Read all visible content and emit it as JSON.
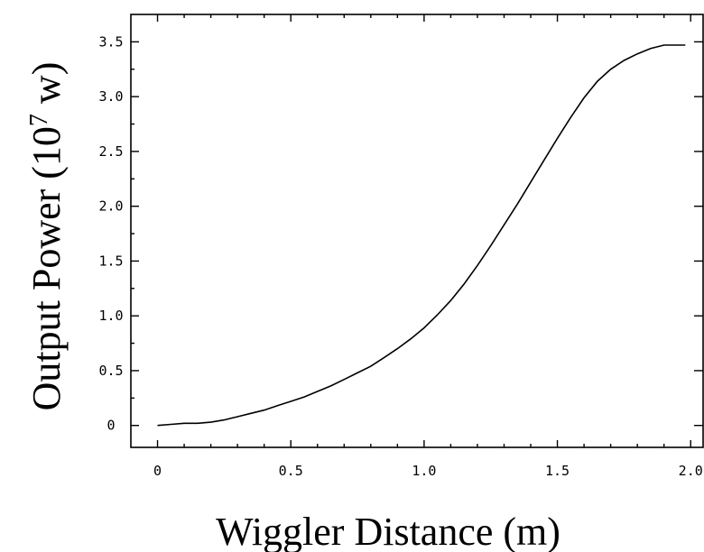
{
  "chart_data": {
    "type": "line",
    "title": "",
    "xlabel": "Wiggler Distance (m)",
    "ylabel_main": "Output Power (10",
    "ylabel_exp": "7",
    "ylabel_tail": " w)",
    "xlim": [
      -0.1,
      2.05
    ],
    "ylim": [
      -0.2,
      3.75
    ],
    "x_ticks": [
      0,
      0.5,
      1.0,
      1.5,
      2.0
    ],
    "x_tick_labels": [
      "0",
      "0.5",
      "1.0",
      "1.5",
      "2.0"
    ],
    "y_ticks": [
      0,
      0.5,
      1.0,
      1.5,
      2.0,
      2.5,
      3.0,
      3.5
    ],
    "y_tick_labels": [
      "0",
      "0.5",
      "1.0",
      "1.5",
      "2.0",
      "2.5",
      "3.0",
      "3.5"
    ],
    "grid": false,
    "series": [
      {
        "color": "#000000",
        "x": [
          0,
          0.05,
          0.1,
          0.15,
          0.2,
          0.25,
          0.3,
          0.35,
          0.4,
          0.45,
          0.5,
          0.55,
          0.6,
          0.65,
          0.7,
          0.75,
          0.8,
          0.85,
          0.9,
          0.95,
          1.0,
          1.05,
          1.1,
          1.15,
          1.2,
          1.25,
          1.3,
          1.35,
          1.4,
          1.45,
          1.5,
          1.55,
          1.6,
          1.65,
          1.7,
          1.75,
          1.8,
          1.85,
          1.9,
          1.95,
          1.98
        ],
        "y": [
          0.0,
          0.01,
          0.02,
          0.02,
          0.03,
          0.05,
          0.08,
          0.11,
          0.14,
          0.18,
          0.22,
          0.26,
          0.31,
          0.36,
          0.42,
          0.48,
          0.54,
          0.62,
          0.7,
          0.79,
          0.89,
          1.01,
          1.14,
          1.29,
          1.46,
          1.64,
          1.83,
          2.02,
          2.22,
          2.42,
          2.62,
          2.81,
          2.99,
          3.14,
          3.25,
          3.33,
          3.39,
          3.44,
          3.47,
          3.47,
          3.47
        ]
      }
    ]
  }
}
